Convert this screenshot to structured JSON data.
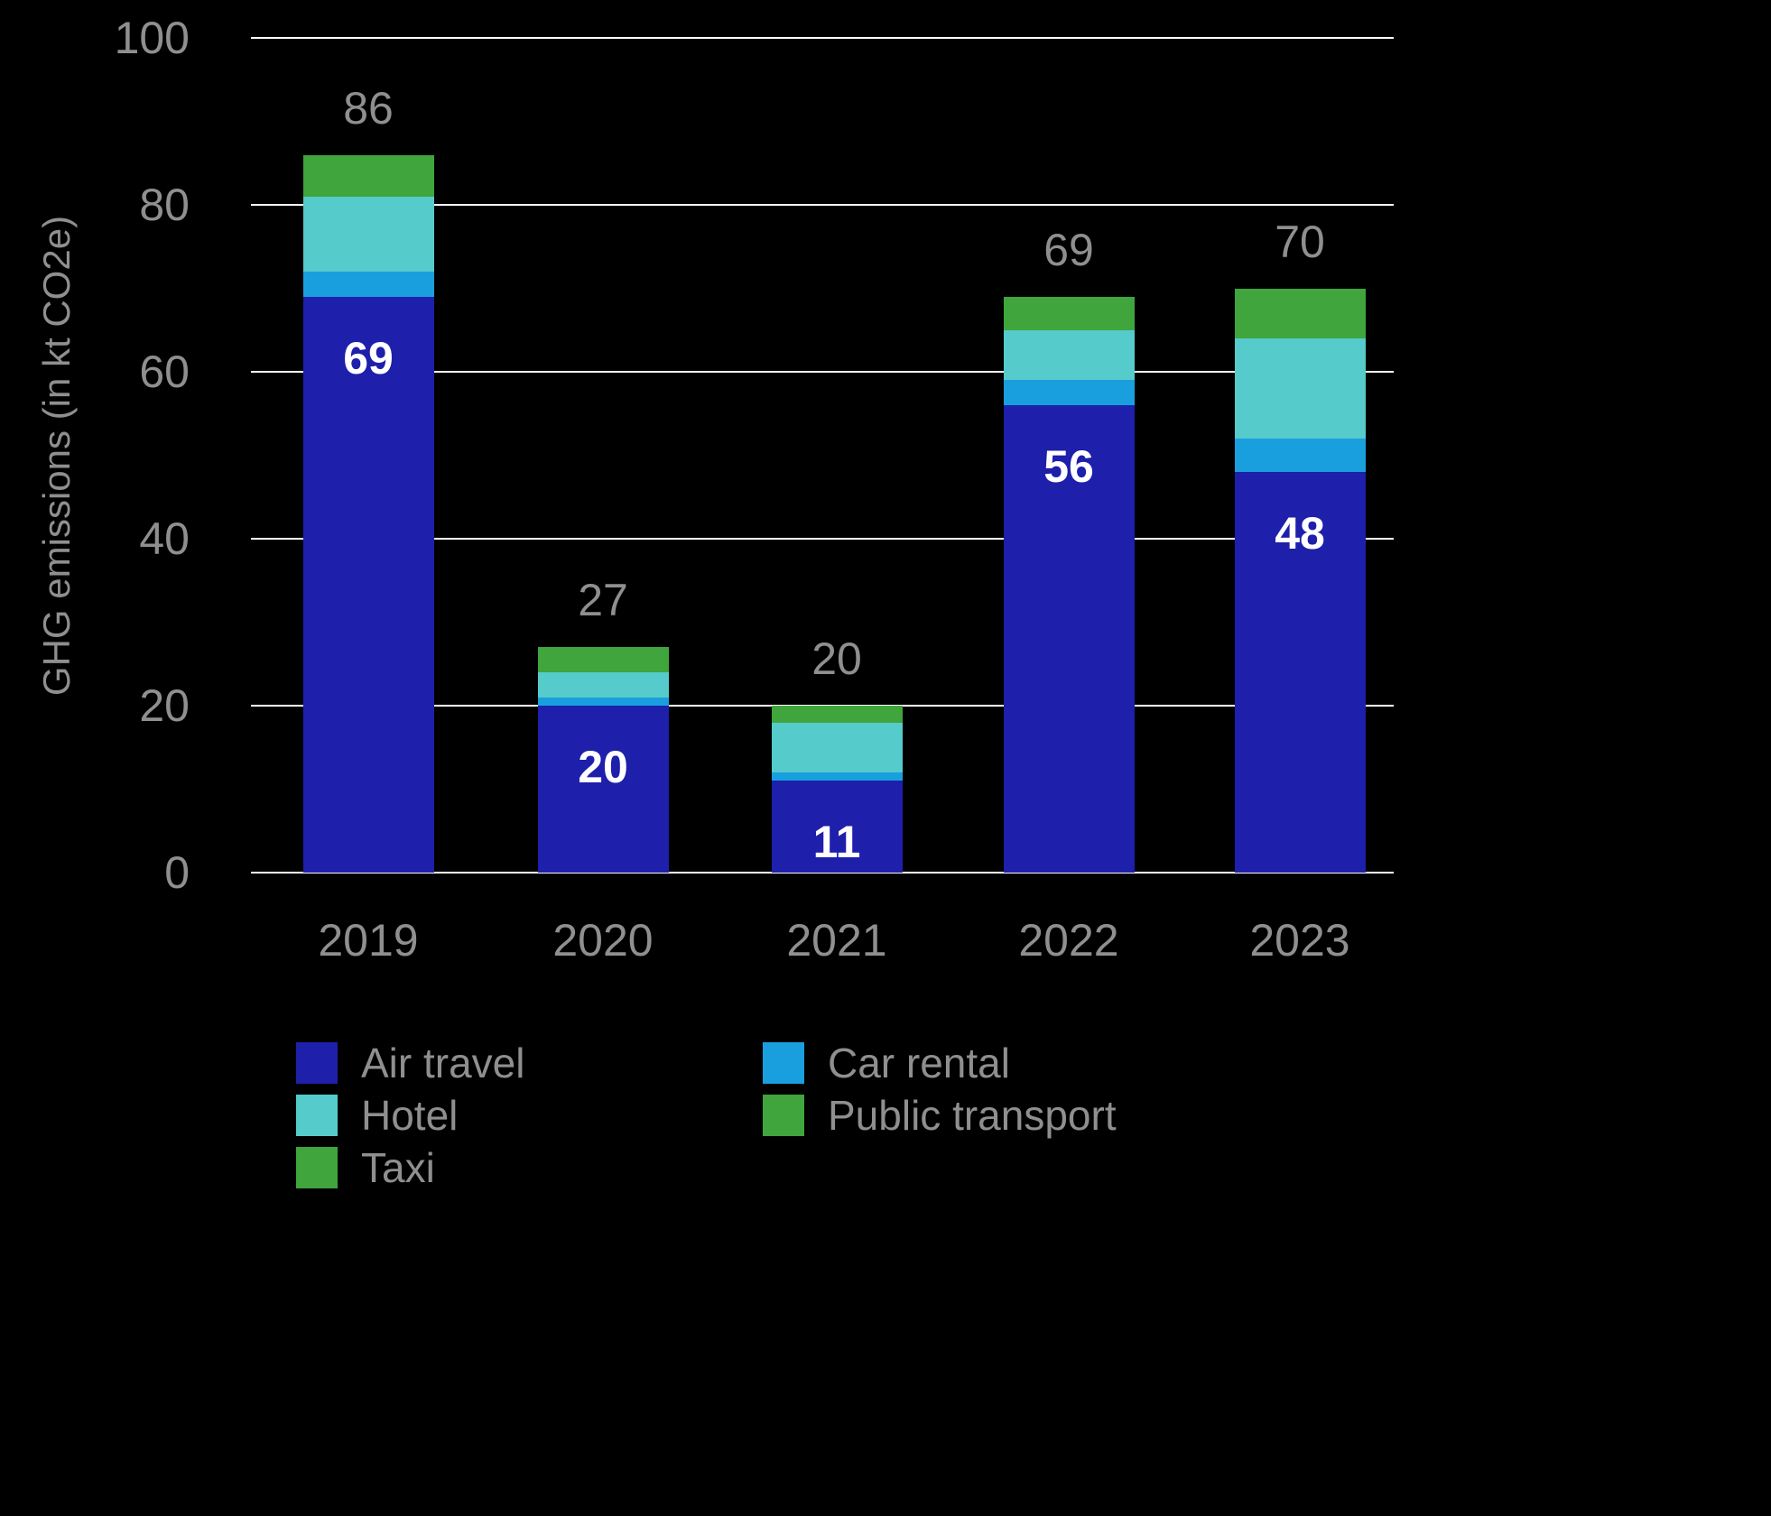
{
  "chart": {
    "y_axis_title": "GHG emissions (in kt CO2e)"
  },
  "chart_data": {
    "type": "bar",
    "stacked": true,
    "title": "",
    "xlabel": "",
    "ylabel": "GHG emissions (in kt CO2e)",
    "ylim": [
      0,
      100
    ],
    "yticks": [
      0,
      20,
      40,
      60,
      80,
      100
    ],
    "grid": true,
    "categories": [
      "2019",
      "2020",
      "2021",
      "2022",
      "2023"
    ],
    "series": [
      {
        "name": "Air travel",
        "color": "#1e1faa",
        "values": [
          69,
          20,
          11,
          56,
          48
        ]
      },
      {
        "name": "Car rental",
        "color": "#1a9fde",
        "values": [
          3,
          1,
          1,
          3,
          4
        ]
      },
      {
        "name": "Hotel",
        "color": "#55cbcb",
        "values": [
          9,
          3,
          6,
          6,
          12
        ]
      },
      {
        "name": "Taxi",
        "color": "#3fa53c",
        "values": [
          2,
          1,
          1,
          2,
          3
        ]
      },
      {
        "name": "Public transport",
        "color": "#3fa53c",
        "values": [
          3,
          2,
          1,
          2,
          3
        ]
      }
    ],
    "totals": [
      86,
      27,
      20,
      69,
      70
    ],
    "air_travel_labels": [
      "69",
      "20",
      "11",
      "56",
      "48"
    ],
    "legend_position": "bottom",
    "legend_columns": [
      [
        "Air travel",
        "Hotel",
        "Taxi"
      ],
      [
        "Car rental",
        "Public transport"
      ]
    ],
    "colors": {
      "background": "#000000",
      "grid": "#ffffff",
      "axis_text": "#8f8f8f",
      "value_label": "#ffffff"
    }
  }
}
